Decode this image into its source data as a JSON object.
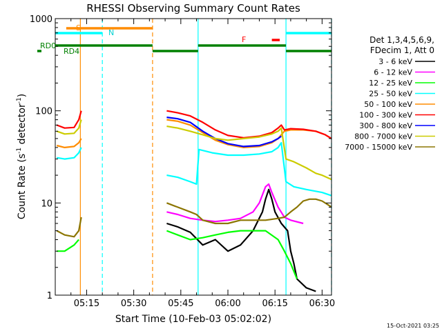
{
  "chart_data": {
    "type": "line",
    "title": "RHESSI Observing Summary Count Rates",
    "xlabel": "Start Time (10-Feb-03 05:02:02)",
    "ylabel_main": "Count Rate (s",
    "ylabel_sup1": "-1",
    "ylabel_mid": " detector",
    "ylabel_sup2": "-1",
    "ylabel_end": ")",
    "y_scale": "log",
    "ylim": [
      1,
      1000
    ],
    "xlim_minutes": [
      5.0,
      93.0
    ],
    "y_ticks": [
      {
        "value": 1,
        "label": "1"
      },
      {
        "value": 10,
        "label": "10"
      },
      {
        "value": 100,
        "label": "100"
      },
      {
        "value": 1000,
        "label": "1000"
      }
    ],
    "x_ticks": [
      {
        "minute": 15,
        "label": "05:15"
      },
      {
        "minute": 30,
        "label": "05:30"
      },
      {
        "minute": 45,
        "label": "05:45"
      },
      {
        "minute": 60,
        "label": "06:00"
      },
      {
        "minute": 75,
        "label": "06:15"
      },
      {
        "minute": 90,
        "label": "06:30"
      }
    ],
    "legend_header": [
      "Det 1,3,4,5,6,9,",
      "FDecim 1, Att 0"
    ],
    "timestamp": "15-Oct-2021 03:25",
    "series": [
      {
        "name": "3 - 6 keV",
        "color": "#000000",
        "segments": [
          [
            [
              40.5,
              6
            ],
            [
              44,
              5.5
            ],
            [
              48,
              4.8
            ],
            [
              52,
              3.5
            ],
            [
              56,
              4
            ],
            [
              60,
              3
            ],
            [
              64,
              3.5
            ],
            [
              68,
              5
            ],
            [
              71,
              8
            ],
            [
              72,
              11
            ],
            [
              73,
              14
            ],
            [
              74,
              11
            ],
            [
              75,
              8
            ],
            [
              77,
              6
            ],
            [
              79,
              5
            ],
            [
              80,
              3
            ],
            [
              81,
              2.2
            ],
            [
              82,
              1.5
            ],
            [
              85,
              1.2
            ],
            [
              88,
              1.1
            ]
          ]
        ]
      },
      {
        "name": "6 - 12 keV",
        "color": "#ff00ff",
        "segments": [
          [
            [
              40.5,
              8
            ],
            [
              44,
              7.5
            ],
            [
              48,
              6.8
            ],
            [
              52,
              6.5
            ],
            [
              56,
              6.3
            ],
            [
              60,
              6.5
            ],
            [
              64,
              6.8
            ],
            [
              68,
              8
            ],
            [
              70,
              10
            ],
            [
              72,
              15
            ],
            [
              73,
              16
            ],
            [
              74,
              13
            ],
            [
              76,
              9
            ],
            [
              78,
              7
            ],
            [
              80,
              6.5
            ],
            [
              84,
              6
            ]
          ]
        ]
      },
      {
        "name": "12 - 25 keV",
        "color": "#00ff00",
        "segments": [
          [
            [
              5.5,
              3
            ],
            [
              8,
              3
            ],
            [
              11,
              3.5
            ],
            [
              12.5,
              4
            ]
          ],
          [
            [
              40.5,
              5
            ],
            [
              44,
              4.5
            ],
            [
              48,
              4
            ],
            [
              52,
              4.2
            ],
            [
              56,
              4.5
            ],
            [
              60,
              4.8
            ],
            [
              64,
              5
            ],
            [
              68,
              5
            ],
            [
              72,
              5
            ],
            [
              76,
              4
            ],
            [
              78,
              3
            ],
            [
              80,
              2.2
            ],
            [
              82,
              1.5
            ]
          ]
        ]
      },
      {
        "name": "25 - 50 keV",
        "color": "#00ffff",
        "segments": [
          [
            [
              5.5,
              31
            ],
            [
              8,
              30
            ],
            [
              11,
              31
            ],
            [
              12.5,
              35
            ],
            [
              13.3,
              40
            ]
          ],
          [
            [
              40.5,
              20
            ],
            [
              44,
              19
            ],
            [
              48,
              17
            ],
            [
              50,
              16
            ],
            [
              50.8,
              38
            ],
            [
              55,
              35
            ],
            [
              60,
              33
            ],
            [
              65,
              33
            ],
            [
              70,
              34
            ],
            [
              74,
              36
            ],
            [
              76,
              40
            ],
            [
              77,
              45
            ],
            [
              78.5,
              17
            ],
            [
              81,
              15
            ],
            [
              85,
              14
            ],
            [
              90,
              13
            ],
            [
              93,
              12
            ]
          ]
        ]
      },
      {
        "name": "50 - 100 keV",
        "color": "#ff8c00",
        "segments": [
          [
            [
              5.5,
              42
            ],
            [
              8,
              40
            ],
            [
              11,
              41
            ],
            [
              12.5,
              45
            ],
            [
              13.3,
              50
            ]
          ],
          [
            [
              40.5,
              80
            ],
            [
              44,
              77
            ],
            [
              48,
              70
            ],
            [
              52,
              58
            ],
            [
              56,
              48
            ],
            [
              60,
              43
            ],
            [
              65,
              40
            ],
            [
              70,
              41
            ],
            [
              74,
              45
            ],
            [
              76,
              50
            ],
            [
              77,
              55
            ],
            [
              78,
              60
            ],
            [
              80,
              62
            ],
            [
              84,
              62
            ],
            [
              88,
              60
            ],
            [
              91,
              55
            ],
            [
              93,
              50
            ]
          ]
        ]
      },
      {
        "name": "100 - 300 keV",
        "color": "#ff0000",
        "segments": [
          [
            [
              5.5,
              70
            ],
            [
              8,
              65
            ],
            [
              11,
              66
            ],
            [
              12.5,
              80
            ],
            [
              13.3,
              100
            ]
          ],
          [
            [
              40.5,
              100
            ],
            [
              44,
              95
            ],
            [
              48,
              88
            ],
            [
              52,
              75
            ],
            [
              56,
              62
            ],
            [
              60,
              54
            ],
            [
              65,
              51
            ],
            [
              70,
              53
            ],
            [
              74,
              58
            ],
            [
              76,
              65
            ],
            [
              77,
              70
            ],
            [
              78,
              62
            ],
            [
              80,
              64
            ],
            [
              84,
              63
            ],
            [
              88,
              60
            ],
            [
              91,
              55
            ],
            [
              93,
              50
            ]
          ]
        ]
      },
      {
        "name": "300 - 800 keV",
        "color": "#0000ff",
        "segments": [
          [
            [
              40.5,
              85
            ],
            [
              44,
              82
            ],
            [
              48,
              75
            ],
            [
              52,
              60
            ],
            [
              56,
              50
            ],
            [
              60,
              44
            ],
            [
              65,
              41
            ],
            [
              70,
              42
            ],
            [
              74,
              46
            ],
            [
              76,
              50
            ],
            [
              77,
              53
            ]
          ]
        ]
      },
      {
        "name": "800 - 7000 keV",
        "color": "#cccc00",
        "segments": [
          [
            [
              5.5,
              60
            ],
            [
              8,
              56
            ],
            [
              11,
              57
            ],
            [
              12.5,
              65
            ],
            [
              13.3,
              80
            ]
          ],
          [
            [
              40.5,
              68
            ],
            [
              44,
              65
            ],
            [
              48,
              60
            ],
            [
              52,
              55
            ],
            [
              56,
              50
            ],
            [
              60,
              48
            ],
            [
              65,
              50
            ],
            [
              70,
              52
            ],
            [
              74,
              56
            ],
            [
              76,
              60
            ],
            [
              77,
              65
            ],
            [
              78.5,
              30
            ],
            [
              81,
              28
            ],
            [
              85,
              24
            ],
            [
              88,
              21
            ],
            [
              90,
              20
            ],
            [
              93,
              18
            ]
          ]
        ]
      },
      {
        "name": "7000 - 15000 keV",
        "color": "#8b7500",
        "segments": [
          [
            [
              5.5,
              5
            ],
            [
              8,
              4.5
            ],
            [
              11,
              4.3
            ],
            [
              12.5,
              5
            ],
            [
              13.3,
              7
            ]
          ],
          [
            [
              40.5,
              10
            ],
            [
              44,
              9
            ],
            [
              48,
              8
            ],
            [
              50,
              7.5
            ],
            [
              52,
              6.5
            ],
            [
              56,
              6
            ],
            [
              60,
              6
            ],
            [
              64,
              6.5
            ],
            [
              68,
              6.5
            ],
            [
              72,
              6.5
            ],
            [
              76,
              6.8
            ],
            [
              78,
              7
            ],
            [
              80,
              8
            ],
            [
              82,
              9
            ],
            [
              84,
              10.5
            ],
            [
              86,
              11
            ],
            [
              88,
              11
            ],
            [
              90,
              10.5
            ],
            [
              92,
              9.5
            ],
            [
              93,
              9
            ]
          ]
        ]
      }
    ],
    "flag_labels": {
      "S": "S",
      "N": "N",
      "F": "F",
      "RD0": "RD0",
      "RD4": "RD4"
    },
    "flag_colors": {
      "S": "#ff8c00",
      "N": "#00ffff",
      "F": "#ff0000",
      "RD": "#008000"
    },
    "flags": {
      "S": [
        [
          8.5,
          13.0
        ],
        [
          13.0,
          36.0
        ]
      ],
      "N": [
        [
          5.0,
          20.0
        ],
        [
          78.5,
          93.0
        ]
      ],
      "F": [
        [
          74.0,
          76.5
        ]
      ],
      "RD0": [
        [
          5.0,
          36.0
        ],
        [
          50.5,
          78.5
        ]
      ],
      "RD4": [
        [
          36.0,
          50.5
        ],
        [
          78.5,
          93.0
        ]
      ]
    },
    "vlines": [
      {
        "minute": 13.0,
        "color": "#ff8c00",
        "style": "solid"
      },
      {
        "minute": 20.0,
        "color": "#00ffff",
        "style": "dashed"
      },
      {
        "minute": 36.0,
        "color": "#ff8c00",
        "style": "dashed"
      },
      {
        "minute": 50.5,
        "color": "#00ffff",
        "style": "solid"
      },
      {
        "minute": 78.5,
        "color": "#00ffff",
        "style": "solid"
      },
      {
        "minute": 93.0,
        "color": "#00ffff",
        "style": "dashed"
      }
    ],
    "grid": false
  }
}
